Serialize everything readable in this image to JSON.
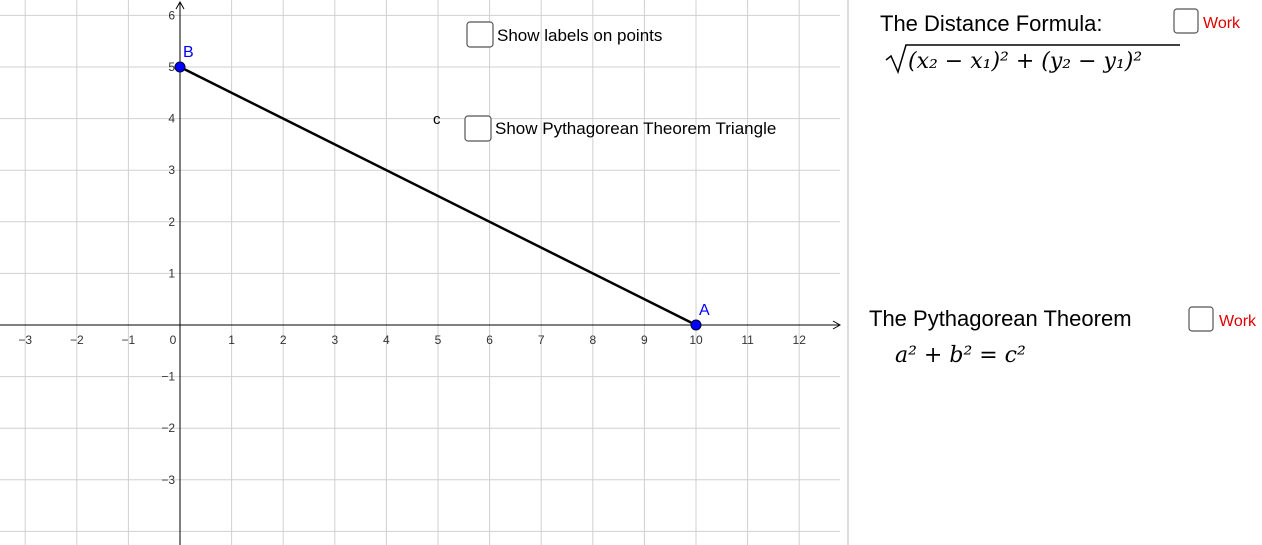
{
  "graph": {
    "xticks": [
      {
        "value": -3,
        "label": "−3"
      },
      {
        "value": -2,
        "label": "−2"
      },
      {
        "value": -1,
        "label": "−1"
      },
      0,
      1,
      2,
      3,
      4,
      5,
      6,
      7,
      8,
      9,
      10,
      11,
      12
    ],
    "yticks": [
      {
        "value": -3,
        "label": "−3"
      },
      {
        "value": -2,
        "label": "−2"
      },
      {
        "value": -1,
        "label": "−1"
      },
      1,
      2,
      3,
      4,
      5,
      6
    ],
    "points": [
      {
        "label": "A",
        "x": 10,
        "y": 0
      },
      {
        "label": "B",
        "x": 0,
        "y": 5
      }
    ],
    "segment_label": "c"
  },
  "checkboxes": [
    {
      "label": "Show labels on points"
    },
    {
      "label": "Show Pythagorean Theorem Triangle"
    }
  ],
  "distance_formula": {
    "title": "The Distance Formula:",
    "work": "Work",
    "formula": "(x₂ − x₁)² + (y₂ − y₁)²"
  },
  "pythagorean": {
    "title": "The Pythagorean Theorem",
    "work": "Work",
    "formula": "a² + b² = c²"
  }
}
